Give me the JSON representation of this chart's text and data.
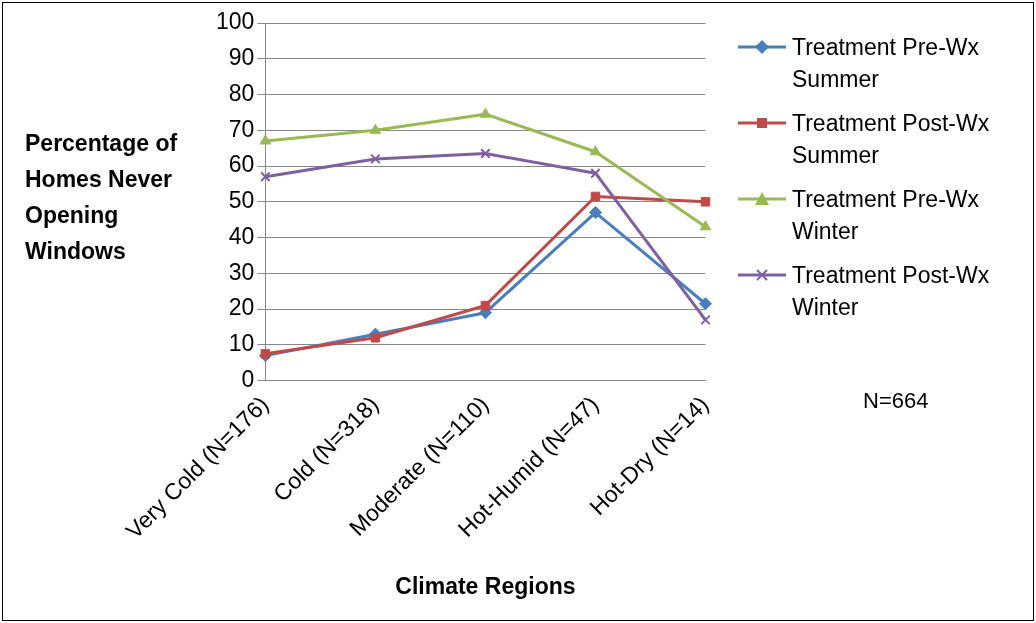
{
  "chart_data": {
    "type": "line",
    "xlabel": "Climate Regions",
    "ylabel": "Percentage of Homes Never Opening Windows",
    "categories": [
      "Very Cold (N=176)",
      "Cold (N=318)",
      "Moderate (N=110)",
      "Hot-Humid (N=47)",
      "Hot-Dry (N=14)"
    ],
    "series": [
      {
        "name": "Treatment Pre-Wx Summer",
        "color": "#4a7ebb",
        "marker": "diamond",
        "values": [
          7,
          13,
          19,
          47,
          21.5
        ]
      },
      {
        "name": "Treatment Post-Wx Summer",
        "color": "#be4b48",
        "marker": "square",
        "values": [
          7.5,
          12,
          21,
          51.5,
          50
        ]
      },
      {
        "name": "Treatment Pre-Wx Winter",
        "color": "#98b954",
        "marker": "triangle",
        "values": [
          67,
          70,
          74.5,
          64,
          43
        ]
      },
      {
        "name": "Treatment Post-Wx Winter",
        "color": "#7d60a0",
        "marker": "cross",
        "values": [
          57,
          62,
          63.5,
          58,
          17
        ]
      }
    ],
    "ylim": [
      0,
      100
    ],
    "yticks": [
      0,
      10,
      20,
      30,
      40,
      50,
      60,
      70,
      80,
      90,
      100
    ],
    "grid": "y",
    "legend": "right",
    "line_style": "solid",
    "annotations": [
      "N=664"
    ]
  }
}
